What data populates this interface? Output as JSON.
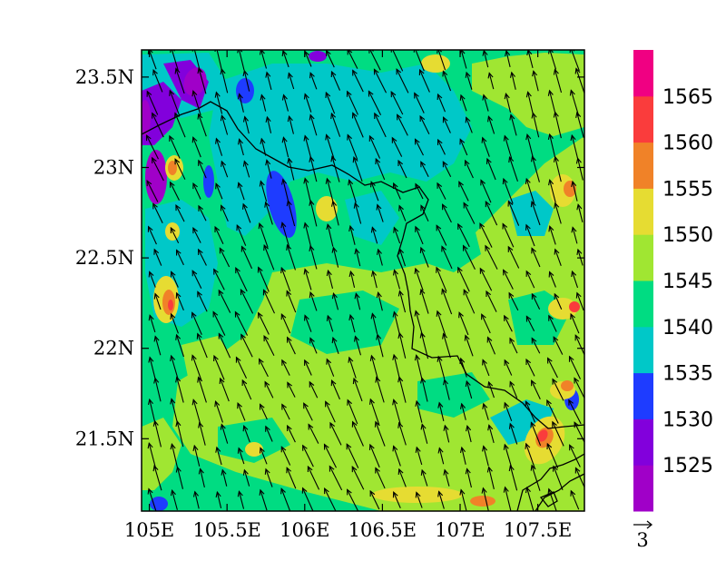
{
  "map": {
    "lon_range": [
      104.95,
      107.8
    ],
    "lat_range": [
      21.1,
      23.65
    ],
    "x_ticks": [
      {
        "value": 105.0,
        "label": "105E"
      },
      {
        "value": 105.5,
        "label": "105.5E"
      },
      {
        "value": 106.0,
        "label": "106E"
      },
      {
        "value": 106.5,
        "label": "106.5E"
      },
      {
        "value": 107.0,
        "label": "107E"
      },
      {
        "value": 107.5,
        "label": "107.5E"
      }
    ],
    "y_ticks": [
      {
        "value": 21.5,
        "label": "21.5N"
      },
      {
        "value": 22.0,
        "label": "22N"
      },
      {
        "value": 22.5,
        "label": "22.5N"
      },
      {
        "value": 23.0,
        "label": "23N"
      },
      {
        "value": 23.5,
        "label": "23.5N"
      }
    ],
    "wind_dir_deg_toward": 340,
    "reference_vector": {
      "label": "3"
    }
  },
  "colorbar": {
    "levels": [
      1525,
      1530,
      1535,
      1540,
      1545,
      1550,
      1555,
      1560,
      1565
    ],
    "labels": [
      "1525",
      "1530",
      "1535",
      "1540",
      "1545",
      "1550",
      "1555",
      "1560",
      "1565"
    ],
    "colors": [
      "#a000c8",
      "#8200dc",
      "#1e3cff",
      "#00c8c8",
      "#00dc82",
      "#a0e632",
      "#e6dc32",
      "#f08228",
      "#fa3c3c",
      "#f00082"
    ]
  },
  "colors": {
    "background_fill": "#00dc82",
    "border": "#000000",
    "vector": "#000000"
  }
}
